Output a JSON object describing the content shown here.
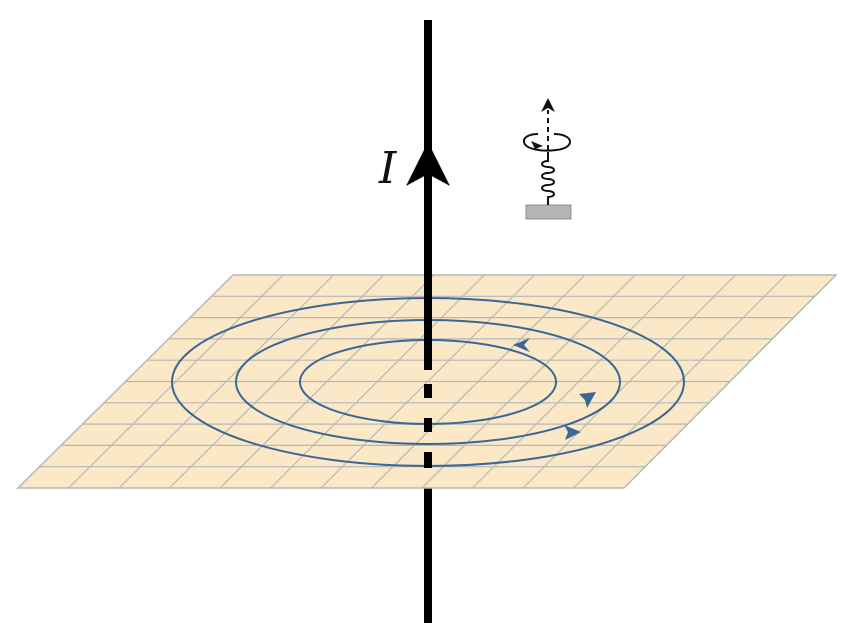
{
  "diagram": {
    "title": "",
    "current_label": "I",
    "colors": {
      "plane_fill": "#fbe8c6",
      "grid_line": "#b7b7b7",
      "field_line": "#3b6796",
      "wire": "#000000",
      "spring_base": "#b5b5b5"
    },
    "field_lines": {
      "count": 3,
      "direction": "counterclockwise-viewed-from-above"
    },
    "plane_grid": {
      "divisions_along": 12,
      "divisions_across": 10
    },
    "current_direction": "up",
    "right_hand_rule_icon": "spring-rotation-arrow-icon"
  }
}
